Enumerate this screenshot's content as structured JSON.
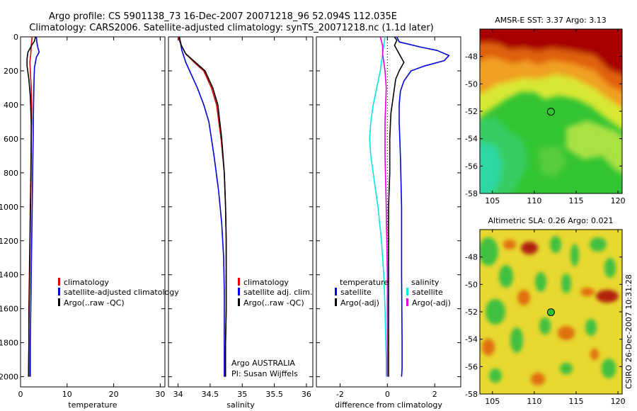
{
  "header": {
    "line1": "Argo profile: CS 5901138_73 16-Dec-2007 20071218_96 52.094S 112.035E",
    "line2": "Climatology: CARS2006. Satellite-adjusted climatology: synTS_20071218.nc (1.1d later)"
  },
  "side_label": "CSIRO 26-Dec-2007 10:31:28",
  "colors": {
    "red": "#e00000",
    "blue": "#0000e0",
    "black": "#000000",
    "cyan": "#00e5e5",
    "magenta": "#e000e0"
  },
  "chart_data": [
    {
      "type": "line",
      "xlabel": "temperature",
      "ylabel": "",
      "xlim": [
        0,
        31
      ],
      "ylim": [
        2060,
        0
      ],
      "xticks": [
        "0",
        "10",
        "20",
        "30"
      ],
      "yticks": [
        "0",
        "200",
        "400",
        "600",
        "800",
        "1000",
        "1200",
        "1400",
        "1600",
        "1800",
        "2000"
      ],
      "legend": {
        "position": "lower-left",
        "items": [
          "climatology",
          "satellite-adjusted climatology",
          "Argo(..raw -QC)"
        ]
      },
      "series": [
        {
          "name": "climatology",
          "color": "#e00000",
          "x": [
            2.5,
            2.3,
            2.2,
            2.0,
            2.1,
            2.3,
            2.4,
            2.4,
            2.3,
            2.2,
            2.1,
            2.0,
            1.9,
            1.8,
            1.8,
            1.7,
            1.7
          ],
          "y": [
            0,
            50,
            100,
            150,
            200,
            300,
            400,
            500,
            600,
            800,
            1000,
            1200,
            1400,
            1600,
            1800,
            1950,
            2000
          ]
        },
        {
          "name": "satellite-adjusted climatology",
          "color": "#0000e0",
          "x": [
            3.4,
            3.5,
            3.7,
            4.0,
            3.4,
            3.0,
            2.9,
            2.8,
            2.7,
            2.6,
            2.5,
            2.4,
            2.3,
            2.2,
            2.1,
            2.1,
            2.1
          ],
          "y": [
            0,
            30,
            60,
            90,
            120,
            180,
            250,
            400,
            600,
            800,
            1000,
            1200,
            1400,
            1600,
            1800,
            1950,
            2000
          ]
        },
        {
          "name": "Argo(..raw -QC)",
          "color": "#000000",
          "x": [
            3.2,
            3.0,
            2.4,
            1.6,
            1.4,
            1.4,
            1.8,
            2.1,
            2.3,
            2.3,
            2.2,
            2.1,
            2.0,
            1.9,
            1.8,
            1.8,
            1.8
          ],
          "y": [
            0,
            25,
            50,
            90,
            130,
            170,
            250,
            350,
            500,
            700,
            900,
            1100,
            1300,
            1500,
            1700,
            1900,
            2000
          ]
        }
      ]
    },
    {
      "type": "line",
      "xlabel": "salinity",
      "ylabel": "",
      "xlim": [
        33.85,
        36.1
      ],
      "ylim": [
        2060,
        0
      ],
      "xticks": [
        "34",
        "34.5",
        "35",
        "35.5",
        "36"
      ],
      "legend": {
        "position": "lower-right",
        "items": [
          "climatology",
          "satellite adj. clim.",
          "Argo(..raw -QC)"
        ]
      },
      "annotations": [
        "Argo AUSTRALIA",
        "PI: Susan Wijffels"
      ],
      "series": [
        {
          "name": "climatology",
          "color": "#e00000",
          "x": [
            34.0,
            34.05,
            34.12,
            34.25,
            34.4,
            34.52,
            34.6,
            34.67,
            34.72,
            34.74,
            34.75,
            34.75,
            34.75,
            34.74,
            34.73,
            34.73
          ],
          "y": [
            0,
            50,
            100,
            150,
            200,
            300,
            400,
            600,
            800,
            1000,
            1200,
            1400,
            1600,
            1800,
            1950,
            2000
          ]
        },
        {
          "name": "satellite adj. clim.",
          "color": "#0000e0",
          "x": [
            34.02,
            34.06,
            34.12,
            34.18,
            34.3,
            34.4,
            34.48,
            34.56,
            34.63,
            34.68,
            34.71,
            34.72,
            34.72,
            34.72,
            34.72
          ],
          "y": [
            0,
            80,
            150,
            200,
            300,
            400,
            500,
            700,
            900,
            1100,
            1300,
            1500,
            1700,
            1900,
            2000
          ]
        },
        {
          "name": "Argo(..raw -QC)",
          "color": "#000000",
          "x": [
            34.02,
            34.05,
            34.12,
            34.27,
            34.42,
            34.54,
            34.62,
            34.68,
            34.72,
            34.74,
            34.75,
            34.75,
            34.75,
            34.74,
            34.74
          ],
          "y": [
            0,
            50,
            100,
            150,
            200,
            300,
            400,
            600,
            800,
            1000,
            1200,
            1400,
            1600,
            1800,
            2000
          ]
        }
      ]
    },
    {
      "type": "line",
      "xlabel": "difference from climatology",
      "ylabel": "",
      "xlim": [
        -3.0,
        3.1
      ],
      "ylim": [
        2060,
        0
      ],
      "xticks": [
        "-2",
        "0",
        "2"
      ],
      "legend": {
        "position": "lower-center",
        "items": [
          "temperature",
          "satellite",
          "Argo(-adj)",
          "salinity",
          "satellite",
          "Argo(-adj)"
        ]
      },
      "series": [
        {
          "name": "temperature satellite",
          "color": "#0000e0",
          "x": [
            0.4,
            0.5,
            1.4,
            2.1,
            2.6,
            2.4,
            1.6,
            1.0,
            0.7,
            0.55,
            0.5,
            0.5,
            0.55,
            0.6,
            0.6,
            0.62,
            0.62,
            0.6
          ],
          "y": [
            0,
            30,
            60,
            80,
            110,
            140,
            170,
            200,
            260,
            320,
            400,
            500,
            700,
            1000,
            1400,
            1800,
            1950,
            2000
          ]
        },
        {
          "name": "temperature Argo(-adj)",
          "color": "#000000",
          "x": [
            0.3,
            0.4,
            0.3,
            0.5,
            0.7,
            0.5,
            0.35,
            0.25,
            0.15,
            0.1,
            0.1,
            0.05,
            0.05,
            0.05,
            0.05
          ],
          "y": [
            0,
            20,
            50,
            100,
            150,
            200,
            250,
            350,
            450,
            600,
            800,
            1000,
            1400,
            1800,
            2000
          ]
        },
        {
          "name": "salinity satellite",
          "color": "#00e5e5",
          "x": [
            -0.1,
            -0.2,
            -0.3,
            -0.45,
            -0.6,
            -0.7,
            -0.75,
            -0.7,
            -0.55,
            -0.4,
            -0.25,
            -0.15,
            -0.1,
            -0.05,
            -0.05
          ],
          "y": [
            0,
            100,
            200,
            300,
            400,
            500,
            600,
            700,
            850,
            1000,
            1200,
            1400,
            1600,
            1900,
            2000
          ]
        },
        {
          "name": "salinity Argo(-adj)",
          "color": "#e000e0",
          "x": [
            -0.3,
            -0.2,
            -0.2,
            -0.1,
            -0.05,
            -0.1,
            -0.1,
            -0.05,
            0.0,
            0.0,
            0.0
          ],
          "y": [
            0,
            50,
            100,
            200,
            300,
            500,
            700,
            1000,
            1400,
            1800,
            2000
          ]
        }
      ]
    },
    {
      "type": "heatmap",
      "title": "AMSR-E SST: 3.37 Argo: 3.13",
      "xlim": [
        103.5,
        120.5
      ],
      "ylim": [
        -58,
        -46
      ],
      "xticks": [
        "105",
        "110",
        "115",
        "120"
      ],
      "yticks": [
        "-48",
        "-50",
        "-52",
        "-54",
        "-56",
        "-58"
      ],
      "marker": {
        "lon": 112.035,
        "lat": -52.094
      }
    },
    {
      "type": "heatmap",
      "title": "Altimetric SLA: 0.26 Argo: 0.021",
      "xlim": [
        103.5,
        120.5
      ],
      "ylim": [
        -58,
        -46
      ],
      "xticks": [
        "105",
        "110",
        "115",
        "120"
      ],
      "yticks": [
        "-48",
        "-50",
        "-52",
        "-54",
        "-56",
        "-58"
      ],
      "marker": {
        "lon": 112.035,
        "lat": -52.094
      }
    }
  ]
}
